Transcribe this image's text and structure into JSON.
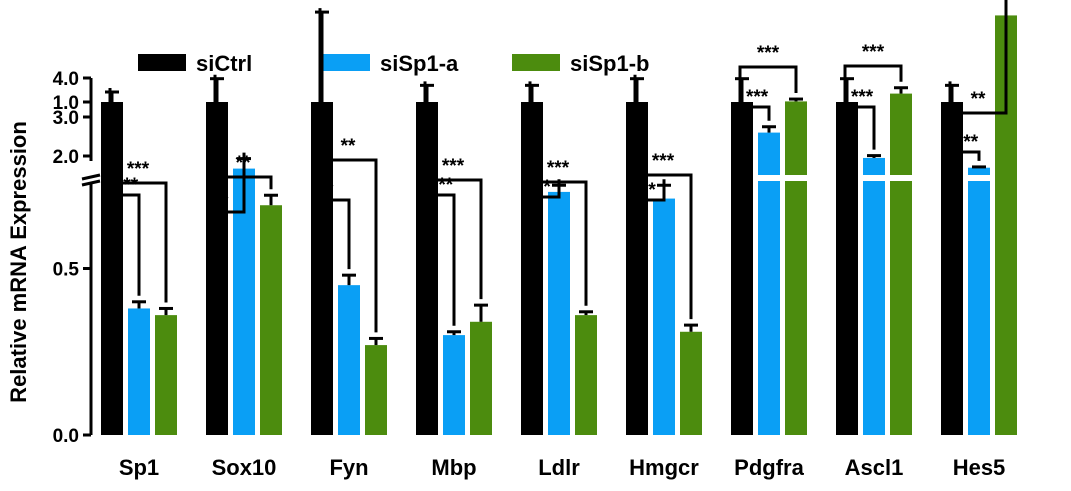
{
  "chart_data": {
    "type": "bar",
    "ylabel": "Relative mRNA Expression",
    "y_axis_break": [
      1.5,
      2.0
    ],
    "lower_yticks": [
      "0.0",
      "0.5",
      "1.0",
      "1.5"
    ],
    "upper_yticks": [
      "2.0",
      "3.0",
      "4.0"
    ],
    "lower_ylim": [
      0,
      1.5
    ],
    "upper_ylim": [
      2.0,
      4.0
    ],
    "legend_position": "top-center",
    "categories": [
      "Sp1",
      "Sox10",
      "Fyn",
      "Mbp",
      "Ldlr",
      "Hmgcr",
      "Pdgfra",
      "Ascl1",
      "Hes5"
    ],
    "series": [
      {
        "name": "siCtrl",
        "color": "#000000",
        "values": [
          1.0,
          1.0,
          1.0,
          1.0,
          1.0,
          1.0,
          1.0,
          1.0,
          1.0
        ],
        "errors": [
          0.03,
          0.07,
          0.27,
          0.05,
          0.05,
          0.07,
          0.07,
          0.07,
          0.05
        ]
      },
      {
        "name": "siSp1-a",
        "color": "#0A9FF5",
        "values": [
          0.38,
          0.8,
          0.45,
          0.3,
          0.73,
          0.71,
          2.6,
          1.95,
          1.7
        ],
        "errors": [
          0.02,
          0.03,
          0.03,
          0.01,
          0.02,
          0.04,
          0.15,
          0.06,
          0.02
        ]
      },
      {
        "name": "siSp1-b",
        "color": "#4C8C0E",
        "values": [
          0.36,
          0.69,
          0.27,
          0.34,
          0.36,
          0.31,
          3.4,
          3.6,
          1.26
        ],
        "errors": [
          0.02,
          0.03,
          0.02,
          0.05,
          0.01,
          0.02,
          0.06,
          0.15,
          0.09
        ]
      }
    ],
    "significance": [
      {
        "category": "Sp1",
        "inner": "***",
        "outer": "***"
      },
      {
        "category": "Sox10",
        "inner": "*",
        "outer": "**"
      },
      {
        "category": "Fyn",
        "inner": "*",
        "outer": "**"
      },
      {
        "category": "Mbp",
        "inner": "***",
        "outer": "***"
      },
      {
        "category": "Ldlr",
        "inner": "**",
        "outer": "***"
      },
      {
        "category": "Hmgcr",
        "inner": "**",
        "outer": "***"
      },
      {
        "category": "Pdgfra",
        "inner": "***",
        "outer": "***"
      },
      {
        "category": "Ascl1",
        "inner": "***",
        "outer": "***"
      },
      {
        "category": "Hes5",
        "inner": "***",
        "outer": "**"
      }
    ]
  }
}
